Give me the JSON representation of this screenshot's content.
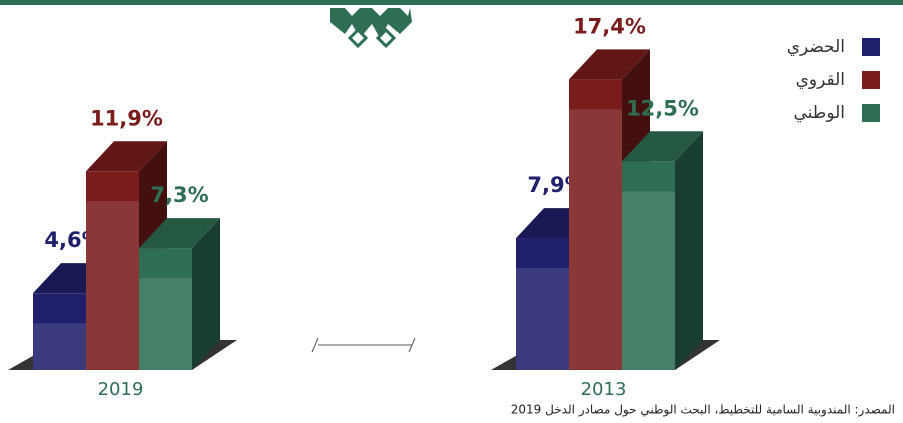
{
  "chart_data": {
    "type": "bar3d",
    "categories": [
      "2019",
      "2013"
    ],
    "series": [
      {
        "name": "الحضري",
        "color": "#1f1f6b",
        "values": [
          4.6,
          7.9
        ],
        "value_labels": [
          "4,6%",
          "7,9%"
        ]
      },
      {
        "name": "القروي",
        "color": "#7a1c1c",
        "values": [
          11.9,
          17.4
        ],
        "value_labels": [
          "11,9%",
          "17,4%"
        ]
      },
      {
        "name": "الوطني",
        "color": "#2e6e54",
        "values": [
          7.3,
          12.5
        ],
        "value_labels": [
          "7,3%",
          "12,5%"
        ]
      }
    ],
    "source": "المصدر: المندوبية السامية للتخطيط، البحث الوطني حول مصادر الدخل 2019"
  }
}
